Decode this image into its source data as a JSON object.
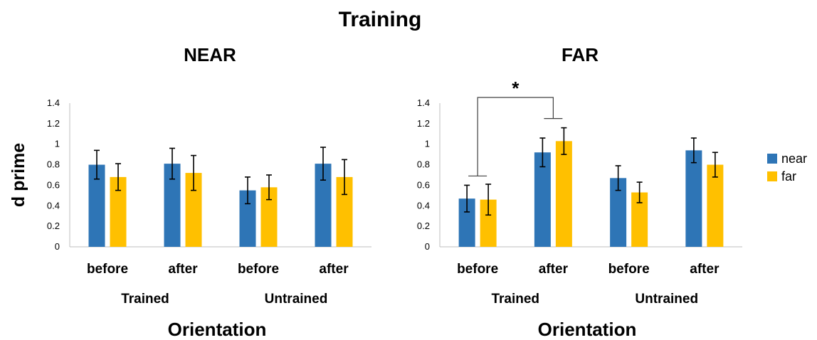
{
  "figure_title": "Training",
  "y_axis_label": "d prime",
  "colors": {
    "near": "#2E75B6",
    "far": "#FFC000"
  },
  "legend": [
    "near",
    "far"
  ],
  "chart_data": [
    {
      "type": "bar",
      "title": "NEAR",
      "xlabel": "Orientation",
      "ylabel": "d prime",
      "groups": [
        "Trained",
        "Untrained"
      ],
      "categories": [
        "before",
        "after",
        "before",
        "after"
      ],
      "ylim": [
        0,
        1.4
      ],
      "yticks": [
        "0",
        "0.2",
        "0.4",
        "0.6",
        "0.8",
        "1",
        "1.2",
        "1.4"
      ],
      "series": [
        {
          "name": "near",
          "values": [
            0.8,
            0.81,
            0.55,
            0.81
          ],
          "errors": [
            0.14,
            0.15,
            0.13,
            0.16
          ]
        },
        {
          "name": "far",
          "values": [
            0.68,
            0.72,
            0.58,
            0.68
          ],
          "errors": [
            0.13,
            0.17,
            0.12,
            0.17
          ]
        }
      ]
    },
    {
      "type": "bar",
      "title": "FAR",
      "xlabel": "Orientation",
      "ylabel": "d prime",
      "groups": [
        "Trained",
        "Untrained"
      ],
      "categories": [
        "before",
        "after",
        "before",
        "after"
      ],
      "ylim": [
        0,
        1.4
      ],
      "yticks": [
        "0",
        "0.2",
        "0.4",
        "0.6",
        "0.8",
        "1",
        "1.2",
        "1.4"
      ],
      "series": [
        {
          "name": "near",
          "values": [
            0.47,
            0.92,
            0.67,
            0.94
          ],
          "errors": [
            0.13,
            0.14,
            0.12,
            0.12
          ]
        },
        {
          "name": "far",
          "values": [
            0.46,
            1.03,
            0.53,
            0.8
          ],
          "errors": [
            0.15,
            0.13,
            0.1,
            0.12
          ]
        }
      ],
      "annotation": {
        "text": "*",
        "between_categories": [
          0,
          1
        ]
      }
    }
  ]
}
